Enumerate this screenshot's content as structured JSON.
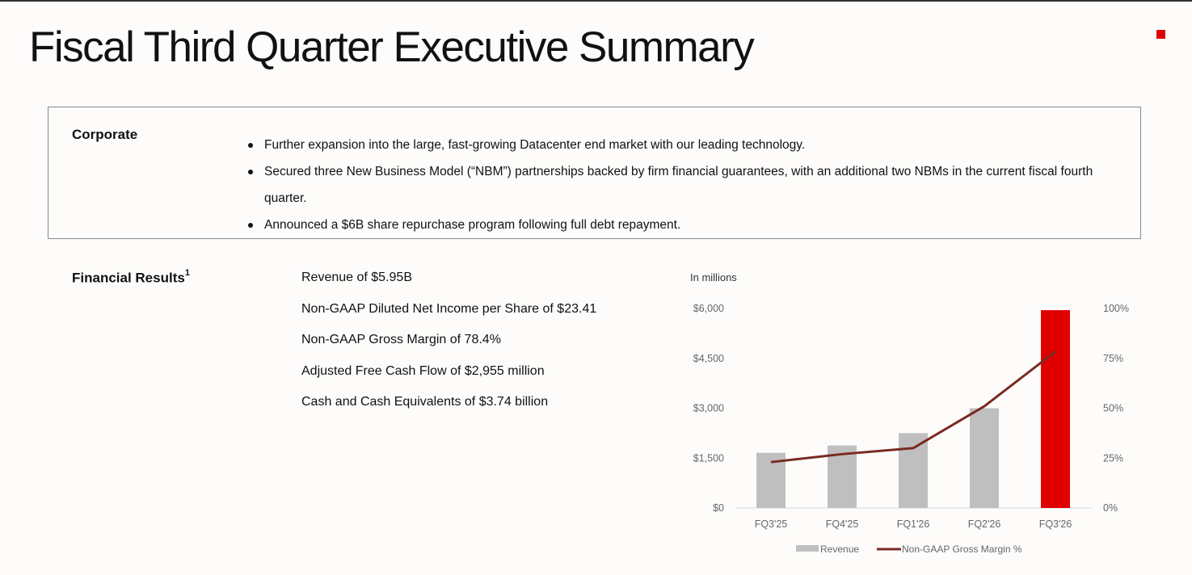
{
  "page": {
    "title": "Fiscal Third Quarter Executive Summary"
  },
  "colors": {
    "accent_red": "#e00000",
    "bar_gray": "#bfbfbf",
    "line_maroon": "#7a2a22"
  },
  "corporate": {
    "heading": "Corporate",
    "bullets": [
      "Further expansion into the large, fast-growing Datacenter end market with our leading technology.",
      "Secured three New Business Model (“NBM”) partnerships backed by firm financial guarantees, with an additional two NBMs in the current fiscal fourth quarter.",
      "Announced a $6B share repurchase program following full debt repayment."
    ]
  },
  "financial": {
    "heading": "Financial Results",
    "footnote": "1",
    "metrics": [
      "Revenue of $5.95B",
      "Non-GAAP Diluted Net Income per Share of $23.41",
      "Non-GAAP Gross Margin of 78.4%",
      "Adjusted Free Cash Flow of $2,955 million",
      "Cash and Cash Equivalents of $3.74 billion"
    ]
  },
  "chart_data": {
    "type": "bar",
    "unit_label": "In millions",
    "categories": [
      "FQ3'25",
      "FQ4'25",
      "FQ1'26",
      "FQ2'26",
      "FQ3'26"
    ],
    "series": [
      {
        "name": "Revenue",
        "type": "bar",
        "axis": "left",
        "values": [
          1660,
          1880,
          2250,
          3000,
          5950
        ],
        "highlight_last": true
      },
      {
        "name": "Non-GAAP Gross Margin %",
        "type": "line",
        "axis": "right",
        "values": [
          23,
          27,
          30,
          51,
          78.4
        ]
      }
    ],
    "left_axis": {
      "ylim": [
        0,
        6000
      ],
      "ticks": [
        "$0",
        "$1,500",
        "$3,000",
        "$4,500",
        "$6,000"
      ]
    },
    "right_axis": {
      "ylim": [
        0,
        100
      ],
      "ticks": [
        "0%",
        "25%",
        "50%",
        "75%",
        "100%"
      ]
    },
    "grid": false,
    "legend_position": "bottom"
  }
}
